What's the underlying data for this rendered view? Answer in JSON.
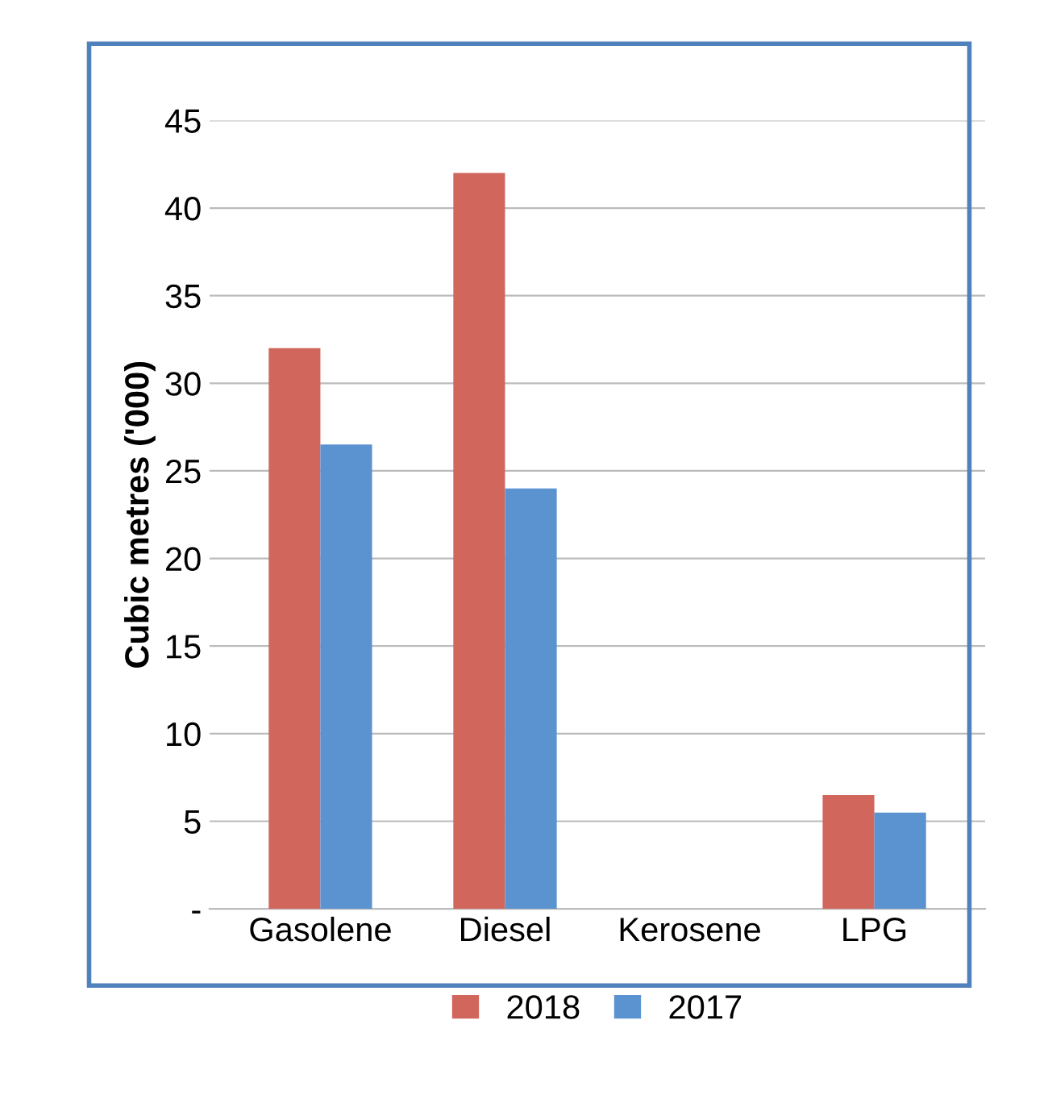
{
  "chart_data": {
    "type": "bar",
    "ylabel": "Cubic metres ('000)",
    "categories": [
      "Gasolene",
      "Diesel",
      "Kerosene",
      "LPG"
    ],
    "series": [
      {
        "name": "2018",
        "color": "#d0665c",
        "values": [
          32,
          42,
          0,
          6.5
        ]
      },
      {
        "name": "2017",
        "color": "#5b93d0",
        "values": [
          26.5,
          24,
          0,
          5.5
        ]
      }
    ],
    "ylim": [
      0,
      45
    ],
    "yticks": [
      {
        "value": 0,
        "label": "-"
      },
      5,
      10,
      15,
      20,
      25,
      30,
      35,
      40,
      45
    ],
    "grid": "y",
    "legend": "bottom"
  }
}
